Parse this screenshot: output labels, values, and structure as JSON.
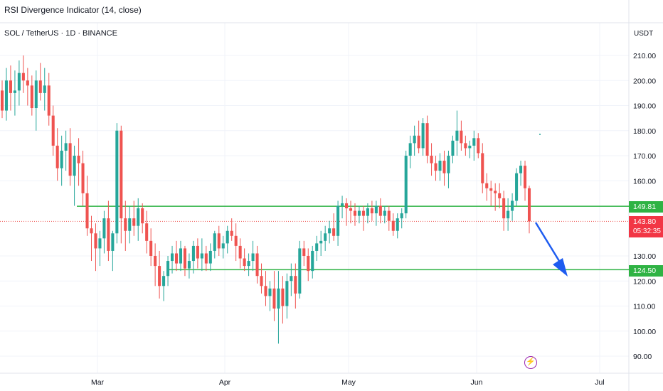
{
  "indicator": {
    "title": "RSI Divergence Indicator (14, close)"
  },
  "symbol": {
    "title": "SOL / TetherUS · 1D · BINANCE"
  },
  "price_axis": {
    "currency": "USDT",
    "ticks": [
      "210.00",
      "200.00",
      "190.00",
      "180.00",
      "170.00",
      "160.00",
      "130.00",
      "120.00",
      "110.00",
      "100.00",
      "90.00"
    ],
    "tick_values": [
      210,
      200,
      190,
      180,
      170,
      160,
      130,
      120,
      110,
      100,
      90
    ]
  },
  "time_axis": {
    "labels": [
      "Mar",
      "Apr",
      "May",
      "Jun",
      "Jul"
    ]
  },
  "levels": [
    {
      "label": "149.81",
      "value": 149.81,
      "color": "#2fb344"
    },
    {
      "label": "124.50",
      "value": 124.5,
      "color": "#2fb344"
    }
  ],
  "last_price": {
    "label": "143.80",
    "value": 143.8,
    "countdown": "05:32:35",
    "color": "#f23645"
  },
  "colors": {
    "up": "#26a69a",
    "down": "#ef5350",
    "level": "#2fb344",
    "arrow": "#1e5cf0",
    "grid": "#f0f3fa"
  },
  "icons": {
    "alert": "lightning-bolt-icon"
  },
  "chart_data": {
    "type": "candlestick",
    "title": "",
    "x_range": [
      "2025-02-06",
      "2025-07-08"
    ],
    "y_range": [
      86,
      216
    ],
    "levels": [
      149.81,
      124.5
    ],
    "last": 143.8,
    "ohlc": [
      [
        196,
        200,
        185,
        188
      ],
      [
        188,
        205,
        184,
        200
      ],
      [
        200,
        206,
        188,
        195
      ],
      [
        195,
        204,
        186,
        196
      ],
      [
        196,
        208,
        190,
        203
      ],
      [
        203,
        210,
        195,
        200
      ],
      [
        200,
        205,
        190,
        198
      ],
      [
        198,
        202,
        186,
        189
      ],
      [
        189,
        204,
        180,
        200
      ],
      [
        200,
        207,
        192,
        195
      ],
      [
        195,
        205,
        188,
        198
      ],
      [
        198,
        203,
        182,
        186
      ],
      [
        186,
        190,
        170,
        174
      ],
      [
        174,
        181,
        160,
        165
      ],
      [
        165,
        178,
        158,
        172
      ],
      [
        172,
        180,
        164,
        175
      ],
      [
        175,
        181,
        158,
        162
      ],
      [
        162,
        174,
        150,
        170
      ],
      [
        170,
        177,
        158,
        167
      ],
      [
        167,
        172,
        150,
        155
      ],
      [
        155,
        162,
        138,
        141
      ],
      [
        141,
        146,
        128,
        139
      ],
      [
        139,
        143,
        124,
        133
      ],
      [
        133,
        140,
        126,
        137
      ],
      [
        137,
        148,
        131,
        145
      ],
      [
        145,
        152,
        128,
        132
      ],
      [
        132,
        140,
        124,
        139
      ],
      [
        139,
        183,
        135,
        180
      ],
      [
        180,
        182,
        135,
        145
      ],
      [
        145,
        152,
        132,
        140
      ],
      [
        140,
        150,
        135,
        145
      ],
      [
        145,
        152,
        138,
        142
      ],
      [
        142,
        153,
        136,
        149
      ],
      [
        149,
        151,
        139,
        143
      ],
      [
        143,
        148,
        131,
        136
      ],
      [
        136,
        141,
        126,
        130
      ],
      [
        130,
        135,
        118,
        126
      ],
      [
        126,
        132,
        113,
        118
      ],
      [
        118,
        124,
        112,
        122
      ],
      [
        122,
        130,
        118,
        128
      ],
      [
        128,
        134,
        123,
        131
      ],
      [
        131,
        136,
        124,
        127
      ],
      [
        127,
        136,
        124,
        133
      ],
      [
        133,
        134,
        122,
        125
      ],
      [
        125,
        131,
        121,
        128
      ],
      [
        128,
        136,
        123,
        134
      ],
      [
        134,
        137,
        125,
        129
      ],
      [
        129,
        137,
        124,
        131
      ],
      [
        131,
        134,
        124,
        127
      ],
      [
        127,
        135,
        124,
        132
      ],
      [
        132,
        140,
        129,
        139
      ],
      [
        139,
        142,
        130,
        133
      ],
      [
        133,
        138,
        129,
        135
      ],
      [
        135,
        142,
        131,
        140
      ],
      [
        140,
        145,
        136,
        138
      ],
      [
        138,
        143,
        128,
        134
      ],
      [
        134,
        137,
        125,
        129
      ],
      [
        129,
        133,
        124,
        126
      ],
      [
        126,
        131,
        122,
        128
      ],
      [
        128,
        136,
        124,
        131
      ],
      [
        131,
        134,
        119,
        122
      ],
      [
        122,
        127,
        115,
        118
      ],
      [
        118,
        124,
        110,
        114
      ],
      [
        114,
        120,
        108,
        117
      ],
      [
        117,
        124,
        104,
        109
      ],
      [
        109,
        124,
        95,
        117
      ],
      [
        117,
        122,
        103,
        110
      ],
      [
        110,
        123,
        105,
        120
      ],
      [
        120,
        127,
        114,
        122
      ],
      [
        122,
        127,
        109,
        115
      ],
      [
        115,
        136,
        113,
        133
      ],
      [
        133,
        136,
        126,
        130
      ],
      [
        130,
        133,
        120,
        124
      ],
      [
        124,
        134,
        121,
        132
      ],
      [
        132,
        138,
        128,
        135
      ],
      [
        135,
        140,
        130,
        136
      ],
      [
        136,
        142,
        132,
        139
      ],
      [
        139,
        144,
        135,
        141
      ],
      [
        141,
        147,
        136,
        138
      ],
      [
        138,
        152,
        134,
        150
      ],
      [
        150,
        154,
        145,
        151
      ],
      [
        151,
        153,
        142,
        149
      ],
      [
        149,
        152,
        143,
        148
      ],
      [
        148,
        151,
        142,
        146
      ],
      [
        146,
        150,
        143,
        148
      ],
      [
        148,
        150,
        140,
        146
      ],
      [
        146,
        151,
        143,
        149
      ],
      [
        149,
        152,
        144,
        147
      ],
      [
        147,
        152,
        142,
        150
      ],
      [
        150,
        153,
        143,
        146
      ],
      [
        146,
        150,
        143,
        148
      ],
      [
        148,
        150,
        140,
        144
      ],
      [
        144,
        147,
        138,
        140
      ],
      [
        140,
        147,
        137,
        145
      ],
      [
        145,
        149,
        141,
        147
      ],
      [
        147,
        172,
        145,
        170
      ],
      [
        170,
        178,
        165,
        175
      ],
      [
        175,
        182,
        170,
        178
      ],
      [
        178,
        184,
        171,
        173
      ],
      [
        173,
        185,
        170,
        183
      ],
      [
        183,
        186,
        167,
        170
      ],
      [
        170,
        175,
        162,
        167
      ],
      [
        167,
        170,
        160,
        164
      ],
      [
        164,
        171,
        160,
        168
      ],
      [
        168,
        172,
        158,
        163
      ],
      [
        163,
        172,
        157,
        170
      ],
      [
        170,
        178,
        167,
        176
      ],
      [
        176,
        188,
        170,
        180
      ],
      [
        180,
        184,
        172,
        175
      ],
      [
        175,
        178,
        170,
        173
      ],
      [
        173,
        176,
        169,
        174
      ],
      [
        174,
        180,
        168,
        177
      ],
      [
        177,
        179,
        169,
        171
      ],
      [
        171,
        175,
        155,
        159
      ],
      [
        159,
        163,
        152,
        157
      ],
      [
        157,
        160,
        150,
        156
      ],
      [
        156,
        159,
        148,
        155
      ],
      [
        155,
        159,
        149,
        153
      ],
      [
        153,
        156,
        140,
        145
      ],
      [
        145,
        153,
        140,
        148
      ],
      [
        148,
        155,
        144,
        152
      ],
      [
        152,
        165,
        150,
        163
      ],
      [
        163,
        168,
        158,
        166
      ],
      [
        166,
        168,
        152,
        157
      ],
      [
        157,
        158,
        139,
        143.8
      ]
    ]
  }
}
